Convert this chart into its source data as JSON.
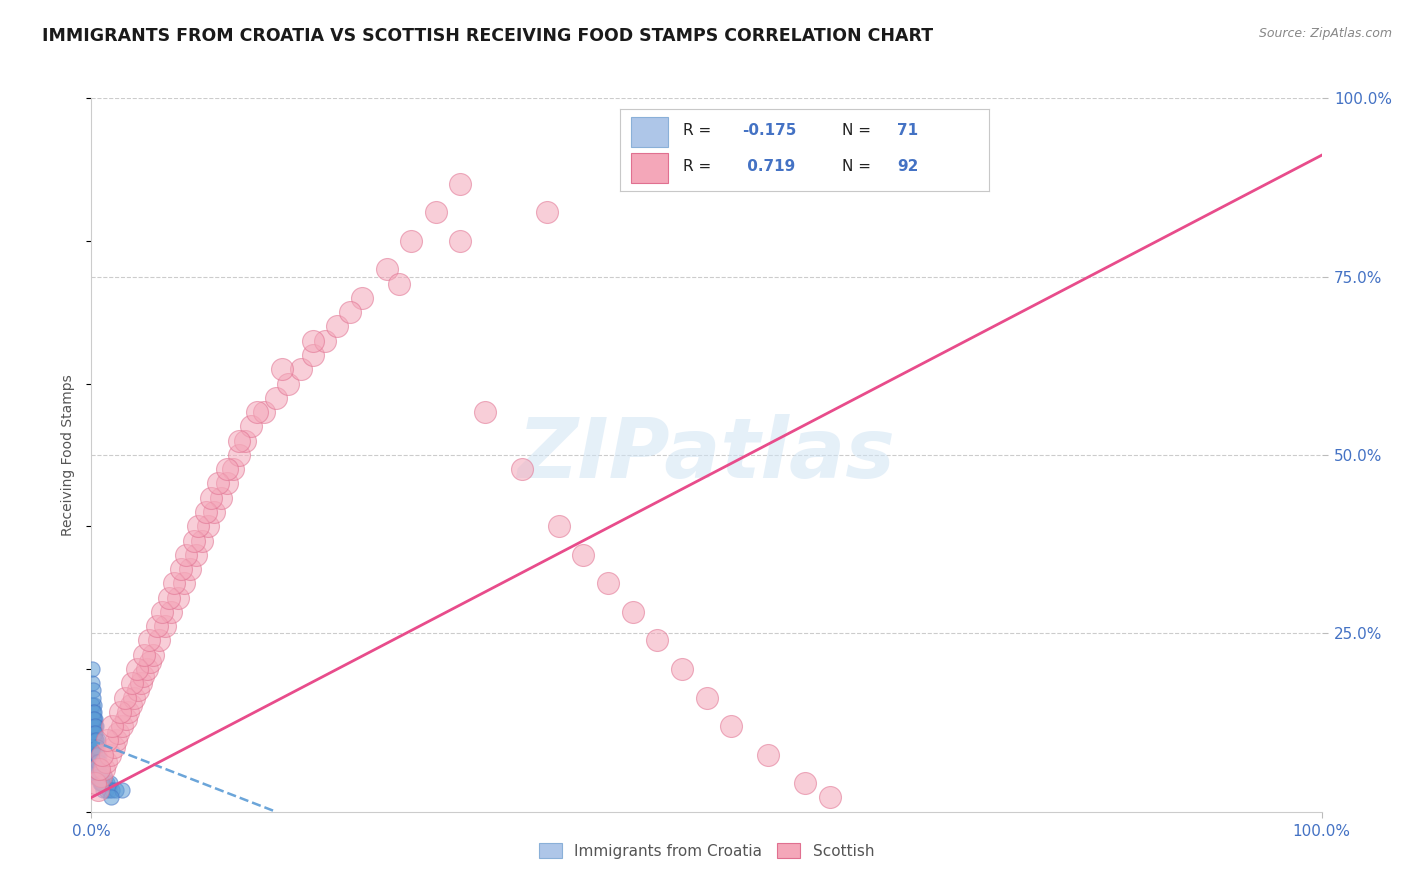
{
  "title": "IMMIGRANTS FROM CROATIA VS SCOTTISH RECEIVING FOOD STAMPS CORRELATION CHART",
  "source_text": "Source: ZipAtlas.com",
  "ylabel": "Receiving Food Stamps",
  "watermark": "ZIPatlas",
  "xlim": [
    0.0,
    100.0
  ],
  "ylim": [
    0.0,
    100.0
  ],
  "y_tick_positions_right": [
    25,
    50,
    75,
    100
  ],
  "y_tick_labels_right": [
    "25.0%",
    "50.0%",
    "75.0%",
    "100.0%"
  ],
  "title_color": "#1a1a1a",
  "title_fontsize": 12.5,
  "axis_label_color": "#555555",
  "tick_label_color_blue": "#4472c4",
  "grid_color": "#cccccc",
  "background_color": "#ffffff",
  "scatter_blue_color": "#5b9bd5",
  "scatter_blue_edge": "#4472c4",
  "scatter_pink_color": "#f4a7b9",
  "scatter_pink_edge": "#e07090",
  "line_blue_color": "#5b9bd5",
  "line_pink_color": "#e84c8b",
  "legend_blue_color": "#aec6e8",
  "legend_pink_color": "#f4a7b9",
  "blue_points_x": [
    0.08,
    0.1,
    0.12,
    0.14,
    0.16,
    0.18,
    0.2,
    0.22,
    0.24,
    0.26,
    0.28,
    0.3,
    0.32,
    0.35,
    0.38,
    0.4,
    0.42,
    0.45,
    0.48,
    0.5,
    0.52,
    0.55,
    0.58,
    0.6,
    0.65,
    0.7,
    0.75,
    0.8,
    0.85,
    0.9,
    0.95,
    1.0,
    1.1,
    1.2,
    1.3,
    1.4,
    1.5,
    1.7,
    2.0,
    2.5,
    0.05,
    0.06,
    0.07,
    0.09,
    0.11,
    0.13,
    0.15,
    0.17,
    0.19,
    0.21,
    0.23,
    0.25,
    0.27,
    0.29,
    0.31,
    0.33,
    0.36,
    0.39,
    0.41,
    0.44,
    0.47,
    0.49,
    0.51,
    0.54,
    0.57,
    0.62,
    0.67,
    0.72,
    0.78,
    0.88,
    1.6
  ],
  "blue_points_y": [
    5.0,
    8.0,
    6.0,
    10.0,
    7.0,
    12.0,
    9.0,
    15.0,
    11.0,
    8.0,
    13.0,
    6.0,
    10.0,
    7.0,
    5.0,
    12.0,
    8.0,
    9.0,
    6.0,
    7.0,
    10.0,
    5.0,
    8.0,
    6.0,
    7.0,
    5.0,
    6.0,
    4.0,
    5.0,
    4.0,
    3.0,
    5.0,
    4.0,
    3.0,
    4.0,
    3.0,
    4.0,
    3.0,
    3.0,
    3.0,
    12.0,
    18.0,
    15.0,
    20.0,
    14.0,
    17.0,
    13.0,
    16.0,
    11.0,
    14.0,
    10.0,
    13.0,
    9.0,
    12.0,
    8.0,
    11.0,
    7.0,
    10.0,
    7.0,
    9.0,
    6.0,
    8.0,
    7.0,
    6.0,
    7.0,
    5.0,
    5.0,
    4.0,
    4.0,
    4.0,
    2.0
  ],
  "pink_points_x": [
    0.5,
    0.8,
    1.0,
    1.2,
    1.5,
    1.8,
    2.0,
    2.2,
    2.5,
    2.8,
    3.0,
    3.2,
    3.5,
    3.8,
    4.0,
    4.2,
    4.5,
    4.8,
    5.0,
    5.5,
    6.0,
    6.5,
    7.0,
    7.5,
    8.0,
    8.5,
    9.0,
    9.5,
    10.0,
    10.5,
    11.0,
    11.5,
    12.0,
    12.5,
    13.0,
    14.0,
    15.0,
    16.0,
    17.0,
    18.0,
    19.0,
    20.0,
    22.0,
    24.0,
    26.0,
    28.0,
    30.0,
    32.0,
    35.0,
    38.0,
    40.0,
    42.0,
    44.0,
    46.0,
    48.0,
    50.0,
    52.0,
    55.0,
    58.0,
    60.0,
    0.3,
    0.6,
    0.9,
    1.3,
    1.7,
    2.3,
    2.7,
    3.3,
    3.7,
    4.3,
    4.7,
    5.3,
    5.7,
    6.3,
    6.7,
    7.3,
    7.7,
    8.3,
    8.7,
    9.3,
    9.7,
    10.3,
    11.0,
    12.0,
    13.5,
    15.5,
    18.0,
    21.0,
    25.0,
    30.0,
    37.0,
    45.0
  ],
  "pink_points_y": [
    3.0,
    5.0,
    6.0,
    7.0,
    8.0,
    9.0,
    10.0,
    11.0,
    12.0,
    13.0,
    14.0,
    15.0,
    16.0,
    17.0,
    18.0,
    19.0,
    20.0,
    21.0,
    22.0,
    24.0,
    26.0,
    28.0,
    30.0,
    32.0,
    34.0,
    36.0,
    38.0,
    40.0,
    42.0,
    44.0,
    46.0,
    48.0,
    50.0,
    52.0,
    54.0,
    56.0,
    58.0,
    60.0,
    62.0,
    64.0,
    66.0,
    68.0,
    72.0,
    76.0,
    80.0,
    84.0,
    88.0,
    56.0,
    48.0,
    40.0,
    36.0,
    32.0,
    28.0,
    24.0,
    20.0,
    16.0,
    12.0,
    8.0,
    4.0,
    2.0,
    4.0,
    6.0,
    8.0,
    10.0,
    12.0,
    14.0,
    16.0,
    18.0,
    20.0,
    22.0,
    24.0,
    26.0,
    28.0,
    30.0,
    32.0,
    34.0,
    36.0,
    38.0,
    40.0,
    42.0,
    44.0,
    46.0,
    48.0,
    52.0,
    56.0,
    62.0,
    66.0,
    70.0,
    74.0,
    80.0,
    84.0,
    90.0
  ],
  "blue_line_x0": 0.0,
  "blue_line_x1": 15.0,
  "blue_line_y0": 10.0,
  "blue_line_y1": 0.0,
  "pink_line_x0": 0.0,
  "pink_line_x1": 100.0,
  "pink_line_y0": 2.0,
  "pink_line_y1": 92.0
}
